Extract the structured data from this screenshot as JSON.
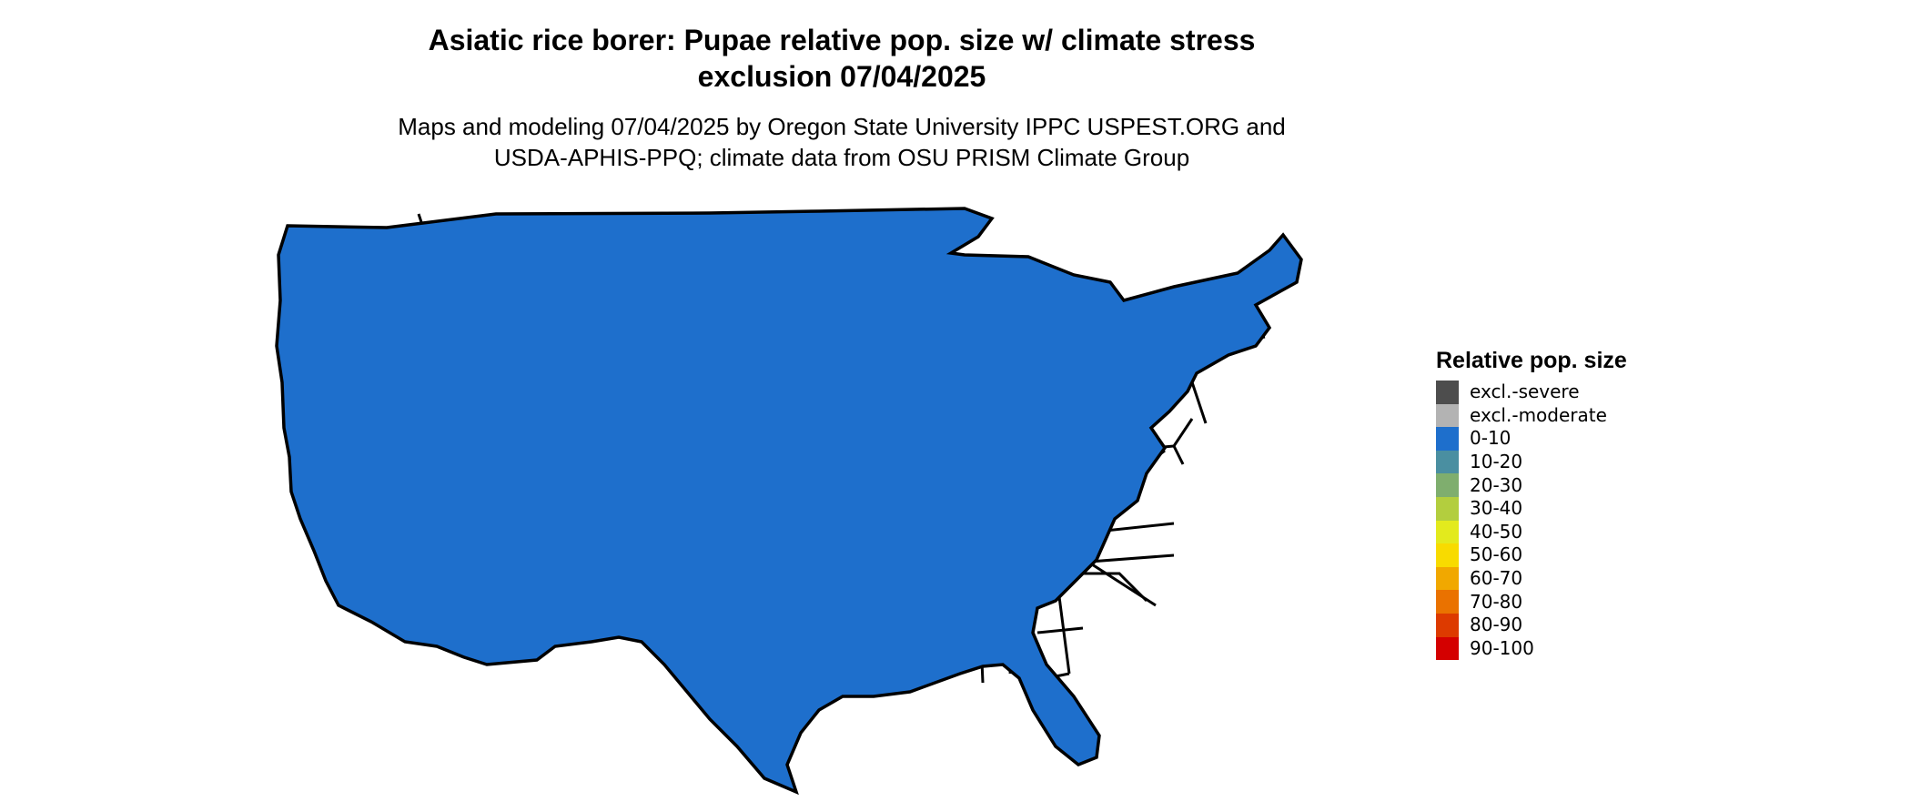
{
  "title": {
    "line1": "Asiatic rice borer: Pupae relative pop. size w/ climate stress",
    "line2": "exclusion 07/04/2025"
  },
  "subtitle": {
    "line1": "Maps and modeling 07/04/2025 by Oregon State University IPPC USPEST.ORG and",
    "line2": "USDA-APHIS-PPQ; climate data from OSU PRISM Climate Group"
  },
  "map": {
    "region": "Contiguous United States",
    "background_class": "0-10",
    "border_color": "#000000"
  },
  "legend": {
    "title": "Relative pop. size",
    "items": [
      {
        "label": "excl.-severe",
        "color": "#4d4d4d"
      },
      {
        "label": "excl.-moderate",
        "color": "#b3b3b3"
      },
      {
        "label": "0-10",
        "color": "#1e6fcc"
      },
      {
        "label": "10-20",
        "color": "#4a8fa1"
      },
      {
        "label": "20-30",
        "color": "#7fae6e"
      },
      {
        "label": "30-40",
        "color": "#b3ce3e"
      },
      {
        "label": "40-50",
        "color": "#e3ea1d"
      },
      {
        "label": "50-60",
        "color": "#f8db00"
      },
      {
        "label": "60-70",
        "color": "#f1a800"
      },
      {
        "label": "70-80",
        "color": "#ea7200"
      },
      {
        "label": "80-90",
        "color": "#dd3a00"
      },
      {
        "label": "90-100",
        "color": "#d40000"
      }
    ]
  }
}
